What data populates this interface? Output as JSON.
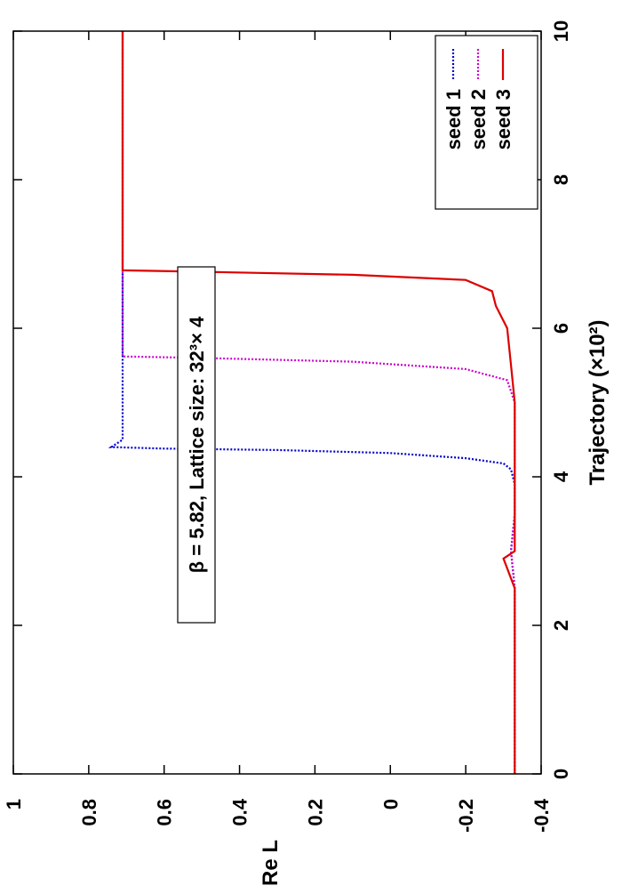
{
  "chart_data": {
    "type": "line",
    "title": "",
    "annotation": "β = 5.82, Lattice size: 32³× 4",
    "xlabel": "Trajectory (×10²)",
    "ylabel": "Re L",
    "xlim": [
      0,
      10
    ],
    "ylim": [
      -0.4,
      1
    ],
    "x_ticks": [
      "0",
      "2",
      "4",
      "6",
      "8",
      "10"
    ],
    "y_ticks": [
      "-0.4",
      "-0.2",
      "0",
      "0.2",
      "0.4",
      "0.6",
      "0.8",
      "1"
    ],
    "grid": false,
    "orientation_note": "figure rotated 90 degrees counter-clockwise",
    "legend_position": "top-right",
    "series": [
      {
        "name": "seed 1",
        "color": "#0000cc",
        "style": "dotted",
        "x": [
          0,
          0.5,
          1,
          1.5,
          2,
          2.5,
          3,
          3.5,
          3.9,
          4.1,
          4.18,
          4.25,
          4.32,
          4.36,
          4.38,
          4.4,
          4.5,
          5,
          5.5,
          6,
          7,
          8,
          9,
          10
        ],
        "y": [
          -0.33,
          -0.33,
          -0.33,
          -0.33,
          -0.33,
          -0.33,
          -0.32,
          -0.33,
          -0.33,
          -0.32,
          -0.3,
          -0.2,
          0,
          0.3,
          0.6,
          0.74,
          0.71,
          0.71,
          0.71,
          0.71,
          0.71,
          0.71,
          0.71,
          0.71
        ]
      },
      {
        "name": "seed 2",
        "color": "#cc00cc",
        "style": "dotted",
        "x": [
          0,
          0.5,
          1,
          1.5,
          2,
          2.5,
          3,
          3.5,
          4,
          4.5,
          5,
          5.3,
          5.45,
          5.55,
          5.6,
          5.62,
          5.7,
          6,
          7,
          8,
          9,
          10
        ],
        "y": [
          -0.33,
          -0.33,
          -0.33,
          -0.33,
          -0.33,
          -0.33,
          -0.32,
          -0.33,
          -0.33,
          -0.33,
          -0.33,
          -0.31,
          -0.2,
          0.1,
          0.5,
          0.71,
          0.71,
          0.71,
          0.71,
          0.71,
          0.71,
          0.71
        ]
      },
      {
        "name": "seed 3",
        "color": "#dd0000",
        "style": "solid",
        "x": [
          0,
          0.5,
          1,
          1.5,
          2,
          2.5,
          2.9,
          3,
          3.5,
          4,
          4.5,
          5,
          5.5,
          6,
          6.3,
          6.5,
          6.65,
          6.72,
          6.76,
          6.78,
          7,
          8,
          9,
          10
        ],
        "y": [
          -0.33,
          -0.33,
          -0.33,
          -0.33,
          -0.33,
          -0.33,
          -0.3,
          -0.33,
          -0.33,
          -0.33,
          -0.33,
          -0.33,
          -0.32,
          -0.31,
          -0.28,
          -0.27,
          -0.2,
          0.1,
          0.5,
          0.71,
          0.71,
          0.71,
          0.71,
          0.71
        ]
      }
    ]
  }
}
